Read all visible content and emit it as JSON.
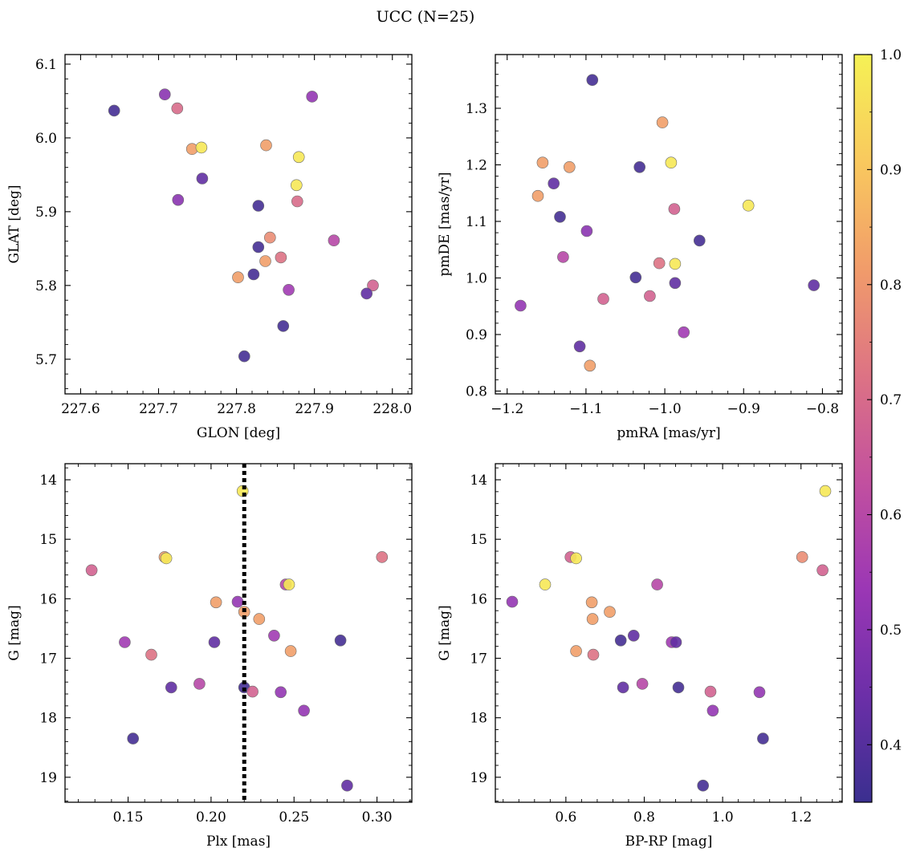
{
  "figure": {
    "title": "UCC (N=25)"
  },
  "colorbar": {
    "range": [
      0.35,
      1.0
    ],
    "ticks": [
      0.4,
      0.5,
      0.6,
      0.7,
      0.8,
      0.9,
      1.0
    ],
    "tick_labels": [
      "0.4",
      "0.5",
      "0.6",
      "0.7",
      "0.8",
      "0.9",
      "1.0"
    ],
    "colormap": "plasma",
    "stops": [
      "#3a2f8f",
      "#6c2fa8",
      "#9b37b5",
      "#c2509f",
      "#dd7384",
      "#f19c6a",
      "#f9c95e",
      "#f5f155"
    ]
  },
  "chart_data": [
    {
      "type": "scatter",
      "xlabel": "GLON [deg]",
      "ylabel": "GLAT [deg]",
      "xlim": [
        227.58,
        228.025
      ],
      "ylim": [
        5.653,
        6.113
      ],
      "y_inverted": false,
      "xticks": [
        227.6,
        227.7,
        227.8,
        227.9,
        228.0
      ],
      "xtick_labels": [
        "227.6",
        "227.7",
        "227.8",
        "227.9",
        "228.0"
      ],
      "yticks": [
        5.7,
        5.8,
        5.9,
        6.0,
        6.1
      ],
      "ytick_labels": [
        "5.7",
        "5.8",
        "5.9",
        "6.0",
        "6.1"
      ],
      "points": [
        {
          "x": 227.643,
          "y": 6.037,
          "c": 0.37
        },
        {
          "x": 227.708,
          "y": 6.059,
          "c": 0.5
        },
        {
          "x": 227.724,
          "y": 6.04,
          "c": 0.7
        },
        {
          "x": 227.743,
          "y": 5.985,
          "c": 0.82
        },
        {
          "x": 227.755,
          "y": 5.987,
          "c": 0.98
        },
        {
          "x": 227.838,
          "y": 5.99,
          "c": 0.82
        },
        {
          "x": 227.897,
          "y": 6.056,
          "c": 0.52
        },
        {
          "x": 227.88,
          "y": 5.974,
          "c": 0.98
        },
        {
          "x": 227.756,
          "y": 5.945,
          "c": 0.42
        },
        {
          "x": 227.725,
          "y": 5.916,
          "c": 0.5
        },
        {
          "x": 227.828,
          "y": 5.908,
          "c": 0.37
        },
        {
          "x": 227.877,
          "y": 5.936,
          "c": 0.98
        },
        {
          "x": 227.878,
          "y": 5.914,
          "c": 0.7
        },
        {
          "x": 227.843,
          "y": 5.865,
          "c": 0.78
        },
        {
          "x": 227.925,
          "y": 5.861,
          "c": 0.6
        },
        {
          "x": 227.828,
          "y": 5.852,
          "c": 0.37
        },
        {
          "x": 227.857,
          "y": 5.838,
          "c": 0.72
        },
        {
          "x": 227.837,
          "y": 5.833,
          "c": 0.82
        },
        {
          "x": 227.802,
          "y": 5.811,
          "c": 0.82
        },
        {
          "x": 227.822,
          "y": 5.815,
          "c": 0.37
        },
        {
          "x": 227.867,
          "y": 5.794,
          "c": 0.55
        },
        {
          "x": 227.975,
          "y": 5.8,
          "c": 0.68
        },
        {
          "x": 227.967,
          "y": 5.789,
          "c": 0.42
        },
        {
          "x": 227.86,
          "y": 5.745,
          "c": 0.37
        },
        {
          "x": 227.81,
          "y": 5.704,
          "c": 0.37
        }
      ]
    },
    {
      "type": "scatter",
      "xlabel": "pmRA [mas/yr]",
      "ylabel": "pmDE [mas/yr]",
      "xlim": [
        -1.215,
        -0.775
      ],
      "ylim": [
        0.795,
        1.395
      ],
      "y_inverted": false,
      "xticks": [
        -1.2,
        -1.1,
        -1.0,
        -0.9,
        -0.8
      ],
      "xtick_labels": [
        "−1.2",
        "−1.1",
        "−1.0",
        "−0.9",
        "−0.8"
      ],
      "yticks": [
        0.8,
        0.9,
        1.0,
        1.1,
        1.2,
        1.3
      ],
      "ytick_labels": [
        "0.8",
        "0.9",
        "1.0",
        "1.1",
        "1.2",
        "1.3"
      ],
      "points": [
        {
          "x": -1.092,
          "y": 1.35,
          "c": 0.37
        },
        {
          "x": -1.003,
          "y": 1.275,
          "c": 0.82
        },
        {
          "x": -1.155,
          "y": 1.204,
          "c": 0.82
        },
        {
          "x": -1.121,
          "y": 1.196,
          "c": 0.82
        },
        {
          "x": -1.032,
          "y": 1.196,
          "c": 0.37
        },
        {
          "x": -0.992,
          "y": 1.204,
          "c": 0.98
        },
        {
          "x": -1.141,
          "y": 1.167,
          "c": 0.42
        },
        {
          "x": -1.161,
          "y": 1.145,
          "c": 0.82
        },
        {
          "x": -0.894,
          "y": 1.128,
          "c": 0.98
        },
        {
          "x": -0.988,
          "y": 1.122,
          "c": 0.68
        },
        {
          "x": -1.133,
          "y": 1.108,
          "c": 0.37
        },
        {
          "x": -1.099,
          "y": 1.083,
          "c": 0.5
        },
        {
          "x": -0.956,
          "y": 1.066,
          "c": 0.37
        },
        {
          "x": -1.129,
          "y": 1.037,
          "c": 0.6
        },
        {
          "x": -1.007,
          "y": 1.026,
          "c": 0.72
        },
        {
          "x": -0.987,
          "y": 1.025,
          "c": 0.98
        },
        {
          "x": -1.037,
          "y": 1.001,
          "c": 0.37
        },
        {
          "x": -0.987,
          "y": 0.991,
          "c": 0.42
        },
        {
          "x": -0.811,
          "y": 0.987,
          "c": 0.42
        },
        {
          "x": -1.019,
          "y": 0.968,
          "c": 0.68
        },
        {
          "x": -1.078,
          "y": 0.963,
          "c": 0.68
        },
        {
          "x": -1.183,
          "y": 0.951,
          "c": 0.52
        },
        {
          "x": -0.976,
          "y": 0.904,
          "c": 0.55
        },
        {
          "x": -1.108,
          "y": 0.879,
          "c": 0.42
        },
        {
          "x": -1.095,
          "y": 0.845,
          "c": 0.82
        }
      ]
    },
    {
      "type": "scatter",
      "xlabel": "Plx [mas]",
      "ylabel": "G [mag]",
      "xlim": [
        0.112,
        0.321
      ],
      "ylim": [
        13.73,
        19.42
      ],
      "y_inverted": true,
      "xticks": [
        0.15,
        0.2,
        0.25,
        0.3
      ],
      "xtick_labels": [
        "0.15",
        "0.20",
        "0.25",
        "0.30"
      ],
      "yticks": [
        14,
        15,
        16,
        17,
        18,
        19
      ],
      "ytick_labels": [
        "14",
        "15",
        "16",
        "17",
        "18",
        "19"
      ],
      "vline": 0.22,
      "points": [
        {
          "x": 0.219,
          "y": 14.19,
          "c": 0.98
        },
        {
          "x": 0.128,
          "y": 15.52,
          "c": 0.68
        },
        {
          "x": 0.172,
          "y": 15.3,
          "c": 0.82
        },
        {
          "x": 0.173,
          "y": 15.32,
          "c": 0.98
        },
        {
          "x": 0.303,
          "y": 15.3,
          "c": 0.72
        },
        {
          "x": 0.245,
          "y": 15.76,
          "c": 0.6
        },
        {
          "x": 0.247,
          "y": 15.76,
          "c": 0.98
        },
        {
          "x": 0.203,
          "y": 16.06,
          "c": 0.82
        },
        {
          "x": 0.216,
          "y": 16.05,
          "c": 0.52
        },
        {
          "x": 0.22,
          "y": 16.22,
          "c": 0.82
        },
        {
          "x": 0.229,
          "y": 16.34,
          "c": 0.82
        },
        {
          "x": 0.238,
          "y": 16.62,
          "c": 0.55
        },
        {
          "x": 0.278,
          "y": 16.7,
          "c": 0.37
        },
        {
          "x": 0.148,
          "y": 16.73,
          "c": 0.55
        },
        {
          "x": 0.202,
          "y": 16.73,
          "c": 0.42
        },
        {
          "x": 0.248,
          "y": 16.88,
          "c": 0.82
        },
        {
          "x": 0.164,
          "y": 16.94,
          "c": 0.72
        },
        {
          "x": 0.193,
          "y": 17.43,
          "c": 0.6
        },
        {
          "x": 0.176,
          "y": 17.49,
          "c": 0.42
        },
        {
          "x": 0.22,
          "y": 17.49,
          "c": 0.37
        },
        {
          "x": 0.225,
          "y": 17.56,
          "c": 0.68
        },
        {
          "x": 0.242,
          "y": 17.57,
          "c": 0.52
        },
        {
          "x": 0.256,
          "y": 17.88,
          "c": 0.52
        },
        {
          "x": 0.153,
          "y": 18.35,
          "c": 0.37
        },
        {
          "x": 0.282,
          "y": 19.14,
          "c": 0.42
        }
      ]
    },
    {
      "type": "scatter",
      "xlabel": "BP-RP [mag]",
      "ylabel": "G [mag]",
      "xlim": [
        0.42,
        1.305
      ],
      "ylim": [
        13.73,
        19.42
      ],
      "y_inverted": true,
      "xticks": [
        0.6,
        0.8,
        1.0,
        1.2
      ],
      "xtick_labels": [
        "0.6",
        "0.8",
        "1.0",
        "1.2"
      ],
      "yticks": [
        14,
        15,
        16,
        17,
        18,
        19
      ],
      "ytick_labels": [
        "14",
        "15",
        "16",
        "17",
        "18",
        "19"
      ],
      "points": [
        {
          "x": 1.262,
          "y": 14.19,
          "c": 0.98
        },
        {
          "x": 0.612,
          "y": 15.3,
          "c": 0.68
        },
        {
          "x": 0.626,
          "y": 15.32,
          "c": 0.98
        },
        {
          "x": 1.203,
          "y": 15.3,
          "c": 0.78
        },
        {
          "x": 1.255,
          "y": 15.52,
          "c": 0.68
        },
        {
          "x": 0.547,
          "y": 15.76,
          "c": 0.98
        },
        {
          "x": 0.833,
          "y": 15.76,
          "c": 0.6
        },
        {
          "x": 0.463,
          "y": 16.05,
          "c": 0.52
        },
        {
          "x": 0.666,
          "y": 16.06,
          "c": 0.82
        },
        {
          "x": 0.712,
          "y": 16.22,
          "c": 0.82
        },
        {
          "x": 0.668,
          "y": 16.34,
          "c": 0.82
        },
        {
          "x": 0.773,
          "y": 16.62,
          "c": 0.42
        },
        {
          "x": 0.74,
          "y": 16.7,
          "c": 0.37
        },
        {
          "x": 0.87,
          "y": 16.73,
          "c": 0.55
        },
        {
          "x": 0.881,
          "y": 16.73,
          "c": 0.42
        },
        {
          "x": 0.626,
          "y": 16.88,
          "c": 0.82
        },
        {
          "x": 0.67,
          "y": 16.94,
          "c": 0.72
        },
        {
          "x": 0.795,
          "y": 17.43,
          "c": 0.6
        },
        {
          "x": 0.746,
          "y": 17.49,
          "c": 0.42
        },
        {
          "x": 0.887,
          "y": 17.49,
          "c": 0.37
        },
        {
          "x": 0.969,
          "y": 17.56,
          "c": 0.68
        },
        {
          "x": 1.094,
          "y": 17.57,
          "c": 0.52
        },
        {
          "x": 0.975,
          "y": 17.88,
          "c": 0.52
        },
        {
          "x": 1.103,
          "y": 18.35,
          "c": 0.37
        },
        {
          "x": 0.95,
          "y": 19.14,
          "c": 0.37
        }
      ]
    }
  ]
}
